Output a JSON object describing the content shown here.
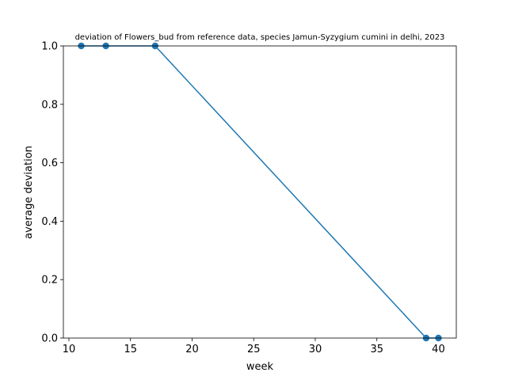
{
  "chart_data": {
    "type": "line",
    "title": "deviation of Flowers_bud from reference data, species Jamun-Syzygium cumini in delhi, 2023",
    "xlabel": "week",
    "ylabel": "average deviation",
    "xlim": [
      9.55,
      41.45
    ],
    "ylim": [
      0.0,
      1.0
    ],
    "xticks": [
      10,
      15,
      20,
      25,
      30,
      35,
      40
    ],
    "yticks": [
      0.0,
      0.2,
      0.4,
      0.6,
      0.8,
      1.0
    ],
    "xtick_labels": [
      "10",
      "15",
      "20",
      "25",
      "30",
      "35",
      "40"
    ],
    "ytick_labels": [
      "0.0",
      "0.2",
      "0.4",
      "0.6",
      "0.8",
      "1.0"
    ],
    "grid": false,
    "legend": "none",
    "series": [
      {
        "color": "#1f77b4",
        "marker": "circle",
        "x": [
          11,
          13,
          17,
          39,
          40
        ],
        "y": [
          1.0,
          1.0,
          1.0,
          0.0,
          0.0
        ]
      }
    ]
  }
}
